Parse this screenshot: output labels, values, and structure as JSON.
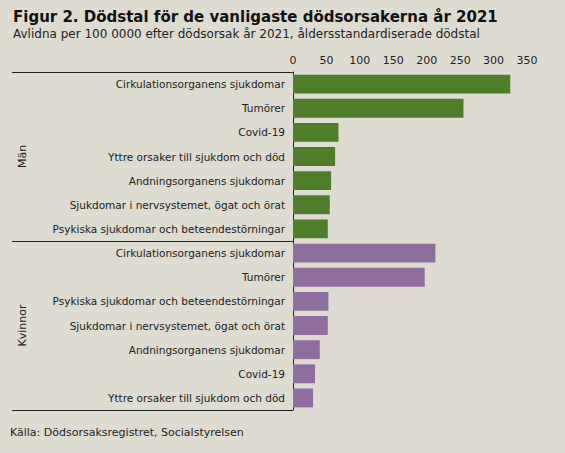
{
  "chart_data": {
    "type": "bar",
    "orientation": "horizontal",
    "title": "Figur 2. Dödstal för de vanligaste dödsorsakerna år 2021",
    "subtitle": "Avlidna per 100 0000 efter dödsorsak år 2021, åldersstandardiserade dödstal",
    "source": "Källa: Dödsorsaksregistret, Socialstyrelsen",
    "xlim": [
      0,
      350
    ],
    "xticks": [
      0,
      50,
      100,
      150,
      200,
      250,
      300,
      350
    ],
    "grid": false,
    "groups": [
      {
        "name": "Män",
        "color": "#4e7d2c",
        "categories": [
          "Cirkulationsorganens sjukdomar",
          "Tumörer",
          "Covid-19",
          "Yttre orsaker till sjukdom och död",
          "Andningsorganens sjukdomar",
          "Sjukdomar i nervsystemet, ögat och örat",
          "Psykiska sjukdomar och beteendestörningar"
        ],
        "values": [
          325,
          255,
          68,
          63,
          57,
          55,
          52
        ]
      },
      {
        "name": "Kvinnor",
        "color": "#8d6e9c",
        "categories": [
          "Cirkulationsorganens sjukdomar",
          "Tumörer",
          "Psykiska sjukdomar och beteendestörningar",
          "Sjukdomar i nervsystemet, ögat och örat",
          "Andningsorganens sjukdomar",
          "Covid-19",
          "Yttre orsaker till sjukdom och död"
        ],
        "values": [
          213,
          197,
          53,
          52,
          40,
          33,
          30
        ]
      }
    ]
  }
}
